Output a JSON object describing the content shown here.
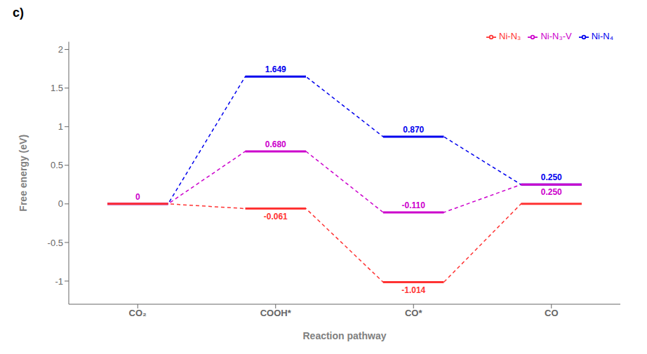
{
  "chart_data": {
    "type": "step",
    "title": "c)",
    "xlabel": "Reaction pathway",
    "ylabel": "Free energy (eV)",
    "categories": [
      "CO₂",
      "COOH*",
      "CO*",
      "CO"
    ],
    "series": [
      {
        "name": "Ni-N₄",
        "color": "#0000EE",
        "values": [
          0.0,
          1.649,
          0.87,
          0.25
        ],
        "value_labels": [
          null,
          "1.649",
          "0.870",
          "0.250"
        ]
      },
      {
        "name": "Ni-N₃-V",
        "color": "#CC00CC",
        "values": [
          0.0,
          0.68,
          -0.11,
          0.25
        ],
        "value_labels": [
          "0",
          "0.680",
          "-0.110",
          "0.250"
        ]
      },
      {
        "name": "Ni-N₃",
        "color": "#FF3333",
        "values": [
          0.0,
          -0.061,
          -1.014,
          0.0
        ],
        "value_labels": [
          null,
          "-0.061",
          "-1.014",
          null
        ]
      }
    ],
    "ylim": [
      -1.3,
      2.1
    ],
    "yticks": [
      -1.0,
      -0.5,
      0.0,
      0.5,
      1.0,
      1.5,
      2.0
    ],
    "legend": "upper right",
    "data_labels": true,
    "grid": false
  }
}
